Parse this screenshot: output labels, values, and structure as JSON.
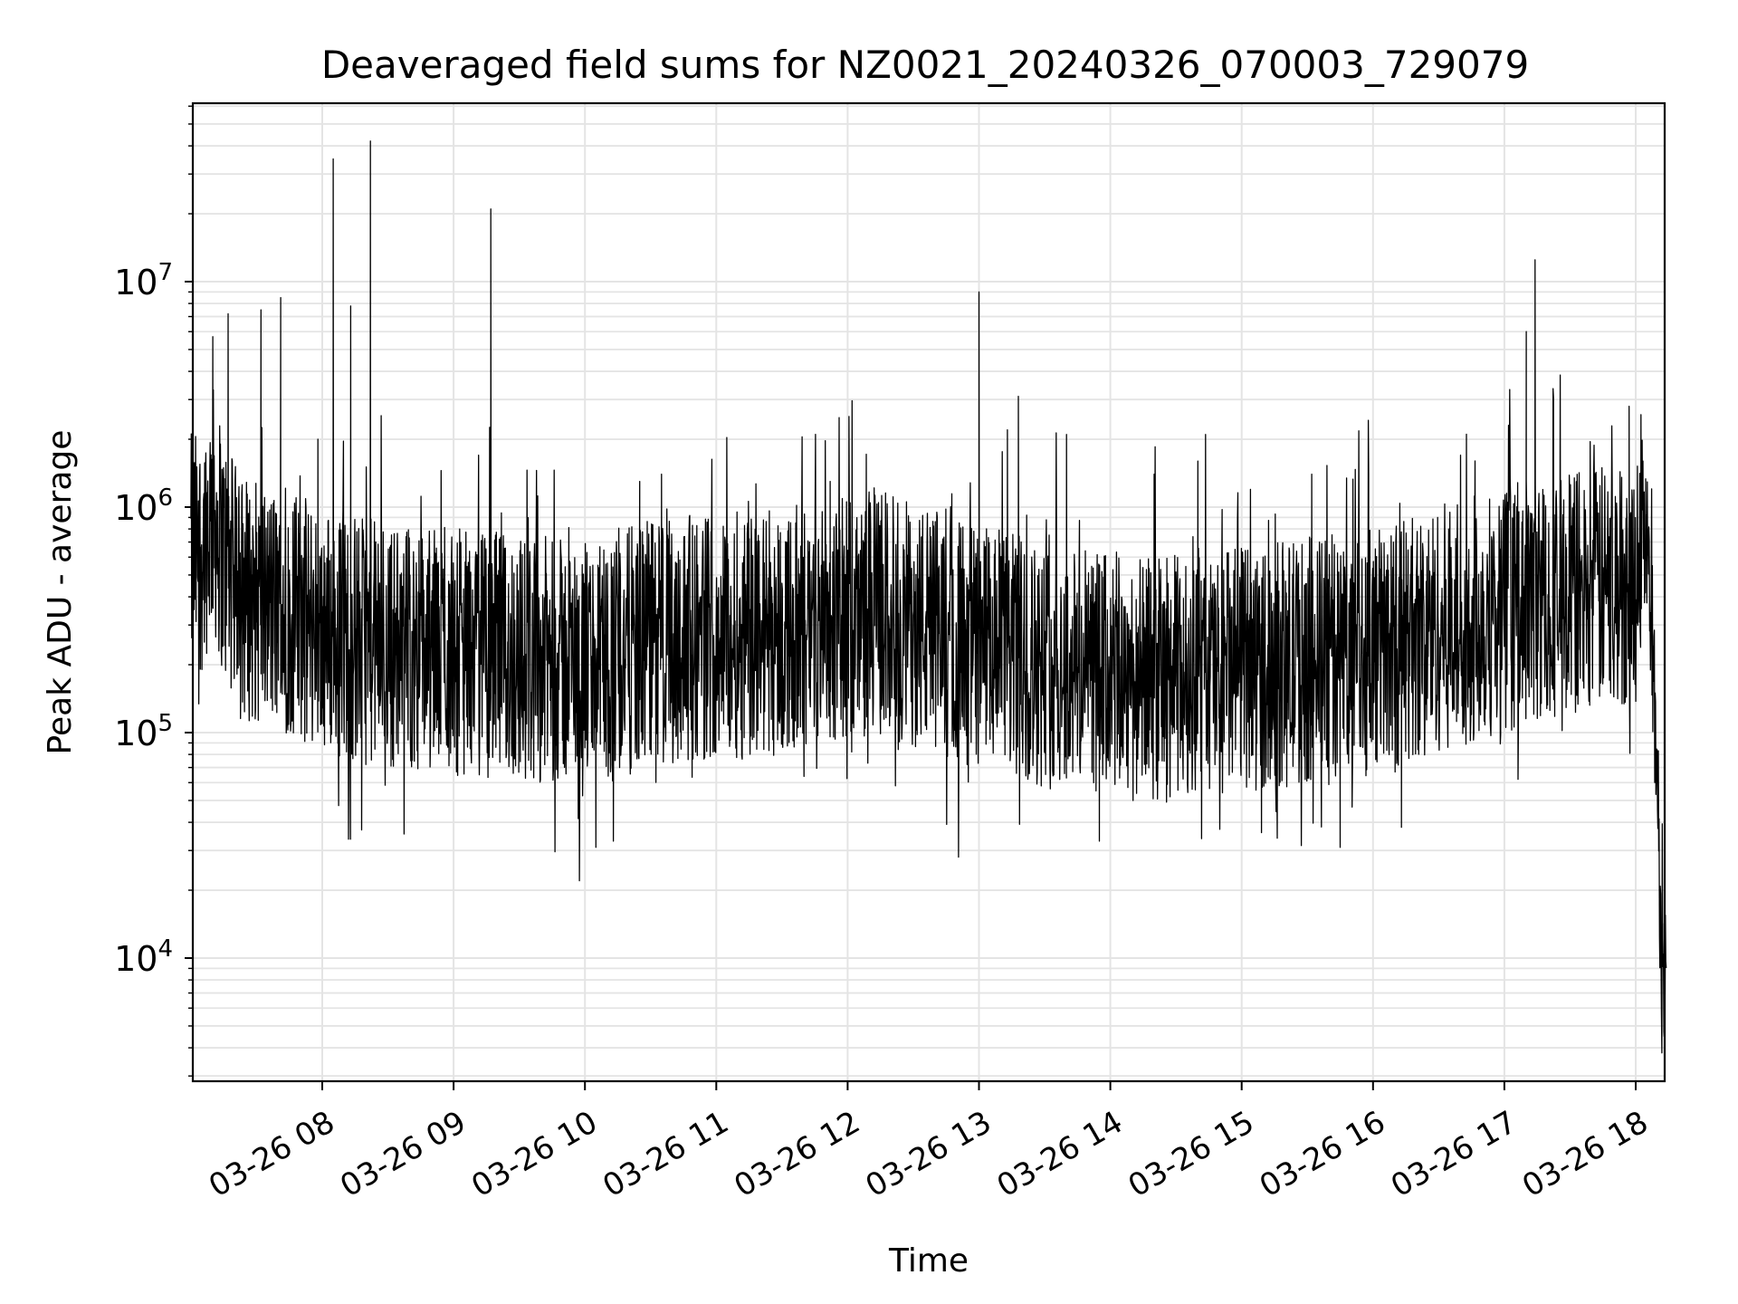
{
  "chart_data": {
    "type": "line",
    "title": "Deaveraged field sums for NZ0021_20240326_070003_729079",
    "xlabel": "Time",
    "ylabel": "Peak ADU - average",
    "yscale": "log",
    "ylim": [
      2800,
      65000000
    ],
    "xlim": [
      "03-26 07:00",
      "03-26 18:15"
    ],
    "grid": true,
    "xticks": [
      "03-26 08",
      "03-26 09",
      "03-26 10",
      "03-26 11",
      "03-26 12",
      "03-26 13",
      "03-26 14",
      "03-26 15",
      "03-26 16",
      "03-26 17",
      "03-26 18"
    ],
    "yticks": [
      {
        "base": "10",
        "exp": "4",
        "value": 10000
      },
      {
        "base": "10",
        "exp": "5",
        "value": 100000
      },
      {
        "base": "10",
        "exp": "6",
        "value": 1000000
      },
      {
        "base": "10",
        "exp": "7",
        "value": 10000000
      }
    ],
    "series": [
      {
        "color": "#000000",
        "x": [
          "07:00",
          "07:05",
          "07:10",
          "07:15",
          "07:20",
          "07:25",
          "07:30",
          "07:35",
          "07:40",
          "07:45",
          "07:50",
          "07:55",
          "08:00",
          "08:05",
          "08:10",
          "08:15",
          "08:20",
          "08:25",
          "08:30",
          "08:40",
          "08:50",
          "09:00",
          "09:10",
          "09:20",
          "09:30",
          "09:40",
          "09:50",
          "10:00",
          "10:10",
          "10:20",
          "10:30",
          "10:40",
          "10:50",
          "11:00",
          "11:15",
          "11:30",
          "11:45",
          "12:00",
          "12:15",
          "12:30",
          "12:45",
          "13:00",
          "13:15",
          "13:30",
          "13:45",
          "14:00",
          "14:15",
          "14:30",
          "14:45",
          "15:00",
          "15:15",
          "15:30",
          "15:45",
          "16:00",
          "16:15",
          "16:30",
          "16:45",
          "17:00",
          "17:10",
          "17:20",
          "17:30",
          "17:40",
          "17:50",
          "18:00",
          "18:03",
          "18:06",
          "18:08",
          "18:10",
          "18:12",
          "18:14"
        ],
        "baseline": [
          600000,
          650000,
          1000000,
          600000,
          450000,
          400000,
          380000,
          360000,
          350000,
          340000,
          320000,
          300000,
          290000,
          280000,
          270000,
          260000,
          255000,
          250000,
          245000,
          240000,
          235000,
          230000,
          225000,
          220000,
          215000,
          210000,
          205000,
          200000,
          210000,
          230000,
          250000,
          260000,
          265000,
          270000,
          270000,
          280000,
          300000,
          320000,
          350000,
          300000,
          270000,
          240000,
          220000,
          200000,
          190000,
          180000,
          170000,
          175000,
          180000,
          190000,
          200000,
          210000,
          220000,
          230000,
          260000,
          290000,
          320000,
          350000,
          380000,
          400000,
          420000,
          430000,
          440000,
          460000,
          1000000,
          500000,
          180000,
          60000,
          8000,
          9000
        ],
        "spikes": [
          {
            "x": "07:10",
            "y": 5700000
          },
          {
            "x": "07:17",
            "y": 7200000
          },
          {
            "x": "07:32",
            "y": 7500000
          },
          {
            "x": "07:41",
            "y": 8500000
          },
          {
            "x": "07:58",
            "y": 2000000
          },
          {
            "x": "08:05",
            "y": 35000000
          },
          {
            "x": "08:13",
            "y": 7800000
          },
          {
            "x": "08:22",
            "y": 42000000
          },
          {
            "x": "09:17",
            "y": 21000000
          },
          {
            "x": "10:25",
            "y": 1300000
          },
          {
            "x": "10:35",
            "y": 1400000
          },
          {
            "x": "11:52",
            "y": 1300000
          },
          {
            "x": "13:00",
            "y": 9000000
          },
          {
            "x": "13:13",
            "y": 2200000
          },
          {
            "x": "13:18",
            "y": 3100000
          },
          {
            "x": "13:40",
            "y": 2100000
          },
          {
            "x": "14:20",
            "y": 1400000
          },
          {
            "x": "14:40",
            "y": 1600000
          },
          {
            "x": "15:32",
            "y": 1400000
          },
          {
            "x": "15:58",
            "y": 1400000
          },
          {
            "x": "16:40",
            "y": 1700000
          },
          {
            "x": "17:10",
            "y": 6000000
          },
          {
            "x": "17:14",
            "y": 12500000
          },
          {
            "x": "17:57",
            "y": 2800000
          }
        ],
        "dips": [
          {
            "x": "08:18",
            "y": 37000
          },
          {
            "x": "10:05",
            "y": 31000
          },
          {
            "x": "10:13",
            "y": 33000
          },
          {
            "x": "13:55",
            "y": 33000
          },
          {
            "x": "15:45",
            "y": 31000
          },
          {
            "x": "16:13",
            "y": 38000
          },
          {
            "x": "18:13",
            "y": 4500
          }
        ]
      }
    ]
  }
}
